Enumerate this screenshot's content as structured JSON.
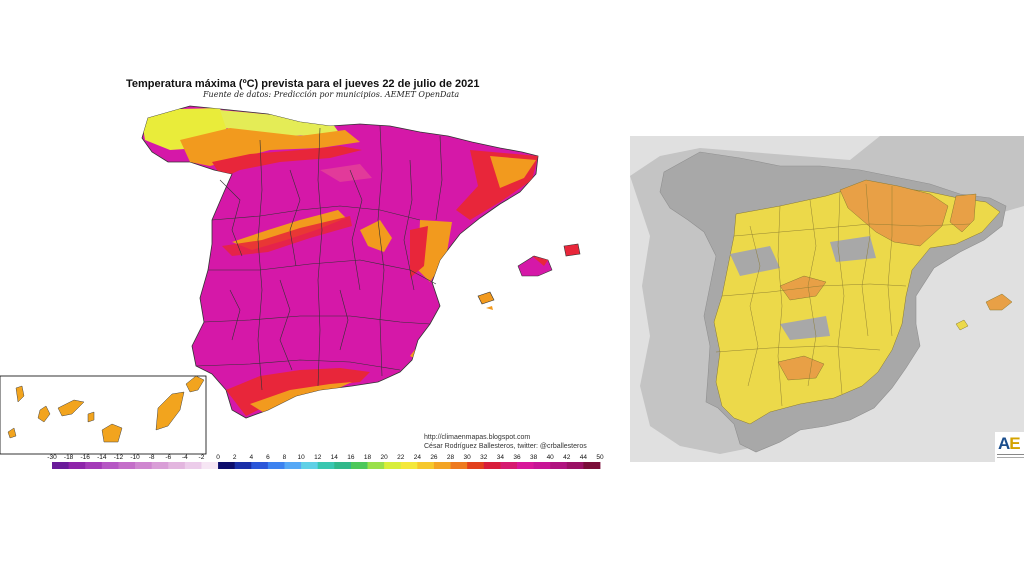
{
  "temp_map": {
    "title": "Temperatura máxima (ºC) prevista para el jueves 22 de julio de 2021",
    "subtitle": "Fuente de datos: Predicción por municipios. AEMET OpenData",
    "credit_url": "http://climaenmapas.blogspot.com",
    "credit_author": "César Rodríguez Ballesteros, twitter: @crballesteros",
    "scale_ticks": [
      "-30",
      "-18",
      "-16",
      "-14",
      "-12",
      "-10",
      "-8",
      "-6",
      "-4",
      "-2",
      "0",
      "2",
      "4",
      "6",
      "8",
      "10",
      "12",
      "14",
      "16",
      "18",
      "20",
      "22",
      "24",
      "26",
      "28",
      "30",
      "32",
      "34",
      "36",
      "38",
      "40",
      "42",
      "44",
      "50"
    ],
    "scale_colors": [
      "#6a1b9a",
      "#8e24aa",
      "#a43ab8",
      "#b657c4",
      "#c46ec9",
      "#cf86d0",
      "#d99ed7",
      "#e3b6df",
      "#ecccea",
      "#f6e6f4",
      "#0d0d6b",
      "#1a2fa8",
      "#2a56d9",
      "#3c82f0",
      "#55a8f6",
      "#5fd0e6",
      "#38c7b0",
      "#30b88a",
      "#4cc85a",
      "#9ae04a",
      "#d8ee3a",
      "#f4e83a",
      "#f6c82c",
      "#f3a424",
      "#ee7a1e",
      "#e2401c",
      "#d81d3a",
      "#d61970",
      "#d8179a",
      "#c81496",
      "#b0127f",
      "#9a1064",
      "#7a0c38"
    ],
    "colors": {
      "mainland": "#d518a8",
      "hot_pink": "#e23a9a",
      "red_band": "#e8263a",
      "orange": "#f29a1e",
      "yellow": "#e9ec3a",
      "border": "#333333"
    }
  },
  "warn_map": {
    "logo_text": [
      "A",
      "E"
    ],
    "colors": {
      "background": "#e0e0e0",
      "land": "#a8a8a8",
      "yellow_warning": "#ecd94a",
      "orange_warning": "#e8a046",
      "border": "#8a7a30"
    }
  }
}
